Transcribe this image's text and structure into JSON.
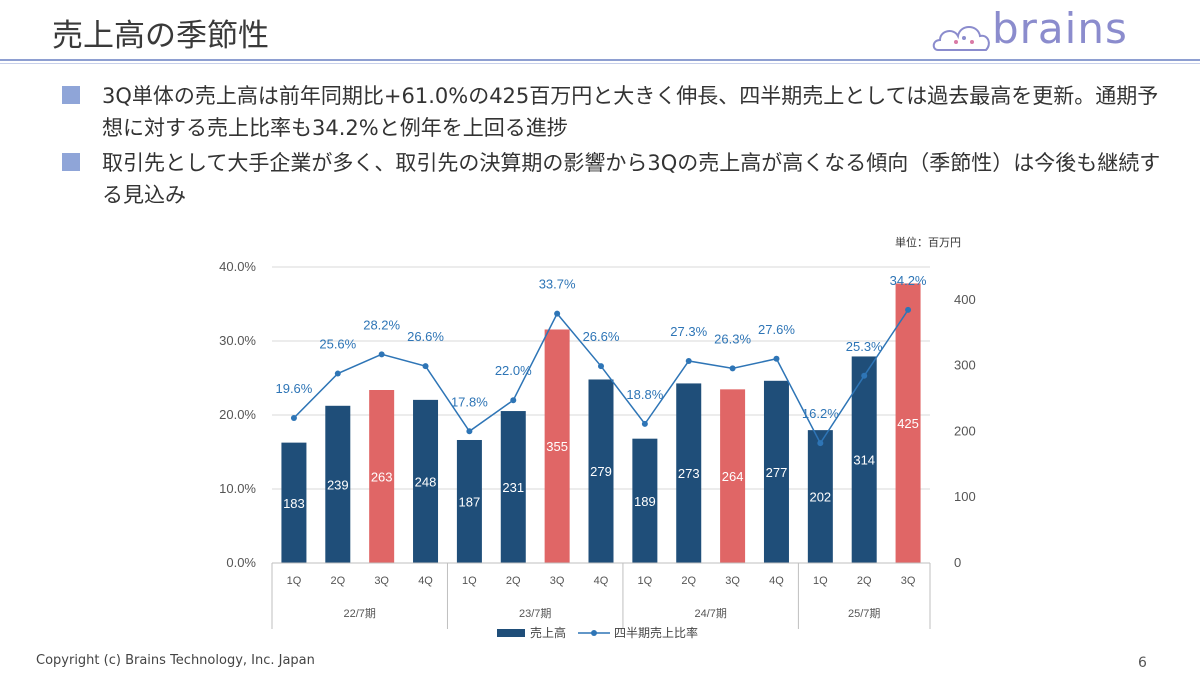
{
  "header": {
    "title": "売上高の季節性",
    "logo_text": "brains"
  },
  "bullets": [
    {
      "text": "3Q単体の売上高は前年同期比+61.0%の425百万円と大きく伸長、四半期売上としては過去最高を更新。通期予想に対する売上比率も34.2%と例年を上回る進捗"
    },
    {
      "text": "取引先として大手企業が多く、取引先の決算期の影響から3Qの売上高が高くなる傾向（季節性）は今後も継続する見込み"
    }
  ],
  "unit_label": "単位：百万円",
  "chart_data": {
    "type": "bar",
    "categories": [
      "1Q",
      "2Q",
      "3Q",
      "4Q",
      "1Q",
      "2Q",
      "3Q",
      "4Q",
      "1Q",
      "2Q",
      "3Q",
      "4Q",
      "1Q",
      "2Q",
      "3Q"
    ],
    "groups": [
      {
        "label": "22/7期",
        "count": 4
      },
      {
        "label": "23/7期",
        "count": 4
      },
      {
        "label": "24/7期",
        "count": 4
      },
      {
        "label": "25/7期",
        "count": 3
      }
    ],
    "series": [
      {
        "name": "売上高",
        "kind": "bar",
        "axis": "right",
        "values": [
          183,
          239,
          263,
          248,
          187,
          231,
          355,
          279,
          189,
          273,
          264,
          277,
          202,
          314,
          425
        ]
      },
      {
        "name": "四半期売上比率",
        "kind": "line",
        "axis": "left",
        "values": [
          19.6,
          25.6,
          28.2,
          26.6,
          17.8,
          22.0,
          33.7,
          26.6,
          18.8,
          27.3,
          26.3,
          27.6,
          16.2,
          25.3,
          34.2
        ],
        "labels": [
          "19.6%",
          "25.6%",
          "28.2%",
          "26.6%",
          "17.8%",
          "22.0%",
          "33.7%",
          "26.6%",
          "18.8%",
          "27.3%",
          "26.3%",
          "27.6%",
          "16.2%",
          "25.3%",
          "34.2%"
        ]
      }
    ],
    "highlight_3q": [
      false,
      false,
      true,
      false,
      false,
      false,
      true,
      false,
      false,
      false,
      true,
      false,
      false,
      false,
      true
    ],
    "y_left": {
      "ticks": [
        "0.0%",
        "10.0%",
        "20.0%",
        "30.0%",
        "40.0%"
      ],
      "min": 0,
      "max": 40
    },
    "y_right": {
      "ticks": [
        "0",
        "100",
        "200",
        "300",
        "400"
      ],
      "min": 0,
      "max": 450
    },
    "colors": {
      "bar": "#1f4e79",
      "bar_highlight": "#e06666",
      "line": "#2e75b6",
      "label_line": "#2e75b6"
    },
    "legend": "bottom"
  },
  "footer": {
    "copyright": "Copyright (c) Brains Technology, Inc. Japan",
    "page": "6"
  }
}
